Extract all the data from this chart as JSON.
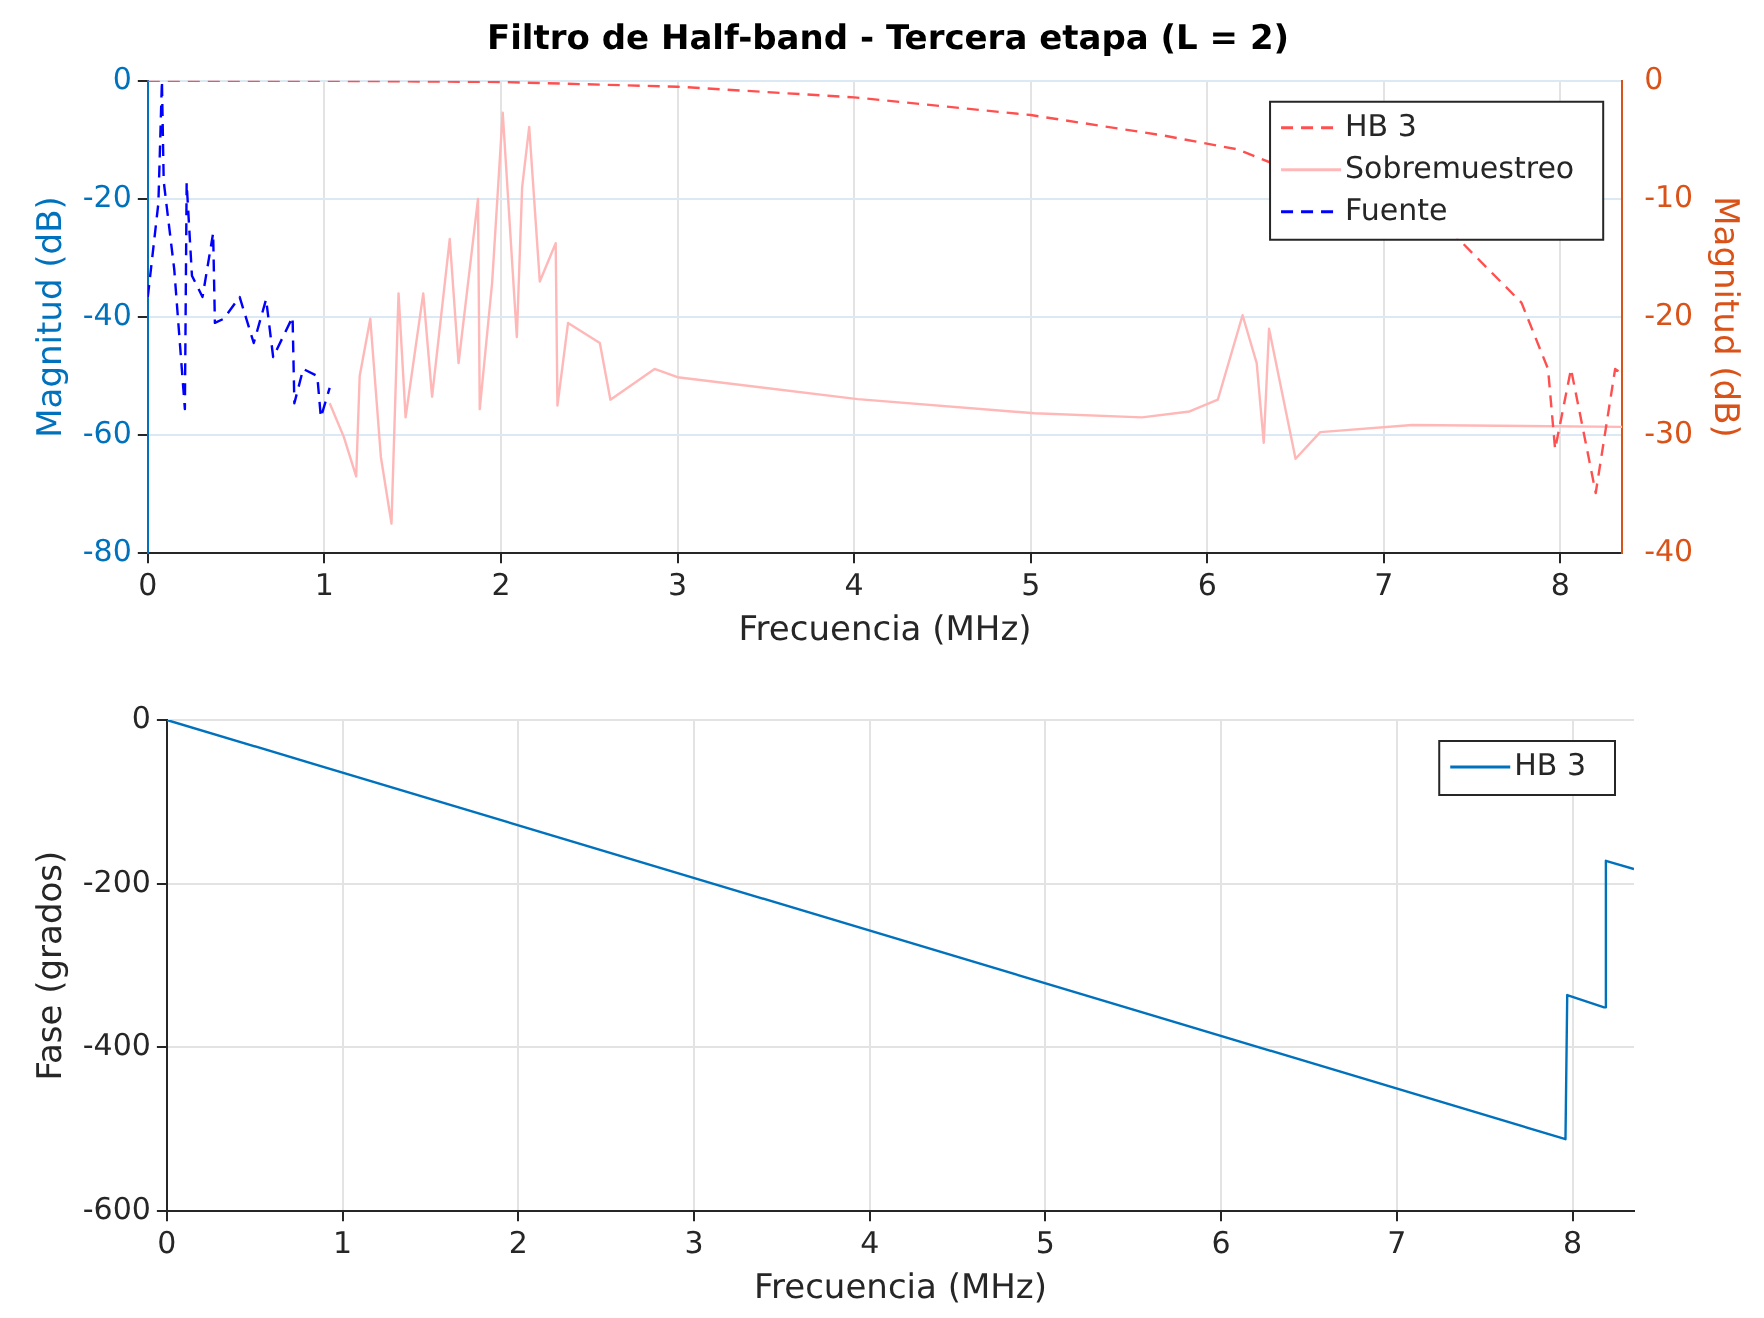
{
  "chart_data": [
    {
      "type": "line",
      "title": "Filtro de Half-band - Tercera etapa (L = 2)",
      "xlabel": "Frecuencia (MHz)",
      "ylabel": "Magnitud (dB)",
      "y2label": "Magnitud (dB)",
      "xlim": [
        0,
        8.35
      ],
      "xticks": [
        0,
        1,
        2,
        3,
        4,
        5,
        6,
        7,
        8
      ],
      "ylim": [
        -80,
        0
      ],
      "yticks": [
        -80,
        -60,
        -40,
        -20,
        0
      ],
      "y2lim": [
        -40,
        0
      ],
      "y2ticks": [
        -40,
        -30,
        -20,
        -10,
        0
      ],
      "grid": true,
      "legend": "top right",
      "marker": "none",
      "series": [
        {
          "name": "HB 3",
          "color": "#ff5050",
          "axis": "y2",
          "line_style": "dashed",
          "x": [
            0,
            1,
            2,
            3,
            4,
            5,
            5.74,
            6.17,
            7.41,
            7.78,
            7.93,
            7.97,
            8.06,
            8.2,
            8.31,
            8.35
          ],
          "values": [
            0,
            0,
            -0.1,
            -0.5,
            -1.4,
            -2.9,
            -4.6,
            -5.8,
            -13.2,
            -18.8,
            -24.4,
            -31.2,
            -24.4,
            -34.9,
            -24.4,
            -24.8
          ]
        },
        {
          "name": "Sobremuestreo",
          "color": "#ffb8b8",
          "line_style": "solid",
          "x": [
            1.03,
            1.11,
            1.18,
            1.2,
            1.26,
            1.32,
            1.38,
            1.42,
            1.46,
            1.56,
            1.61,
            1.71,
            1.76,
            1.87,
            1.88,
            1.95,
            2.01,
            2.09,
            2.12,
            2.16,
            2.22,
            2.31,
            2.32,
            2.38,
            2.56,
            2.62,
            2.87,
            3,
            4.02,
            5.02,
            5.63,
            5.9,
            6.06,
            6.2,
            6.28,
            6.32,
            6.35,
            6.5,
            6.64,
            7.16,
            8.35
          ],
          "values": [
            -54.6,
            -60.3,
            -67,
            -50,
            -40.3,
            -63.7,
            -75,
            -36,
            -57,
            -36,
            -53.5,
            -26.8,
            -47.8,
            -20,
            -55.6,
            -34.2,
            -5.4,
            -43.4,
            -18,
            -7.8,
            -34,
            -27.5,
            -55,
            -41,
            -44.4,
            -54,
            -48.8,
            -50.2,
            -53.9,
            -56.3,
            -57,
            -56,
            -54,
            -39.7,
            -47.8,
            -61.3,
            -42,
            -64,
            -59.5,
            -58.3,
            -58.6
          ]
        },
        {
          "name": "Fuente",
          "color": "#0000ff",
          "line_style": "dashed",
          "x": [
            0,
            0.06,
            0.08,
            0.09,
            0.15,
            0.21,
            0.22,
            0.25,
            0.31,
            0.37,
            0.38,
            0.43,
            0.52,
            0.6,
            0.67,
            0.71,
            0.82,
            0.83,
            0.88,
            0.96,
            0.98,
            1.03
          ],
          "values": [
            -36.6,
            -20.7,
            0,
            -17,
            -32,
            -55.6,
            -17.3,
            -33,
            -36.6,
            -25.8,
            -41,
            -40.3,
            -36.6,
            -44.4,
            -37,
            -46.8,
            -40,
            -54.6,
            -48.8,
            -50,
            -57,
            -52
          ]
        }
      ]
    },
    {
      "type": "line",
      "xlabel": "Frecuencia (MHz)",
      "ylabel": "Fase (grados)",
      "xlim": [
        0,
        8.35
      ],
      "xticks": [
        0,
        1,
        2,
        3,
        4,
        5,
        6,
        7,
        8
      ],
      "ylim": [
        -600,
        0
      ],
      "yticks": [
        -600,
        -400,
        -200,
        0
      ],
      "grid": true,
      "legend": "top right",
      "marker": "none",
      "series": [
        {
          "name": "HB 3",
          "color": "#0072bd",
          "line_style": "solid",
          "x": [
            0,
            7.96,
            7.97,
            8.18,
            8.19,
            8.35
          ],
          "values": [
            0,
            -512,
            -336,
            -351,
            -172,
            -182
          ]
        }
      ]
    }
  ]
}
